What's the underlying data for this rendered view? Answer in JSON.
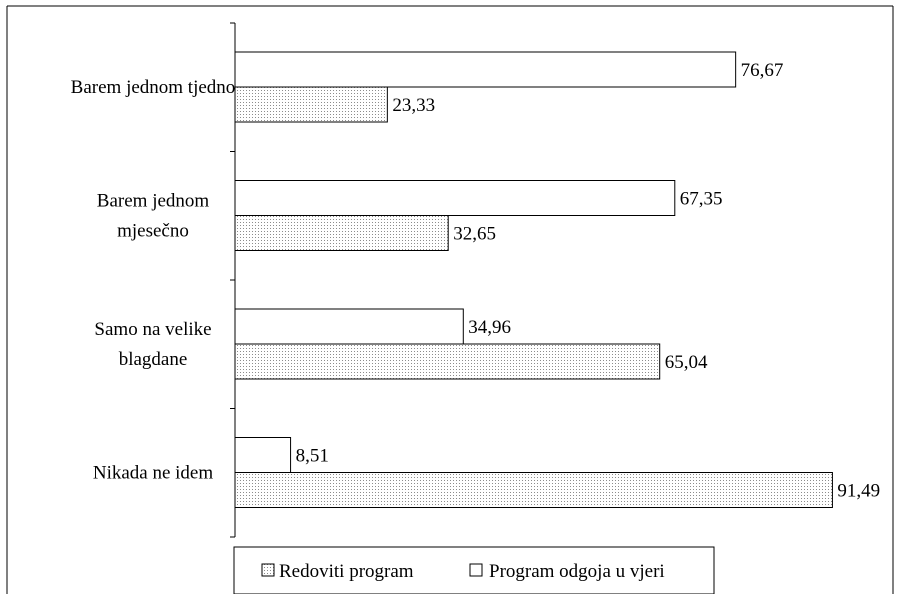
{
  "chart_data": {
    "type": "bar",
    "orientation": "horizontal",
    "categories": [
      [
        "Barem jednom tjedno"
      ],
      [
        "Barem jednom",
        "mjesečno"
      ],
      [
        "Samo na velike",
        "blagdane"
      ],
      [
        "Nikada ne idem"
      ]
    ],
    "series": [
      {
        "name": "Program odgoja u vjeri",
        "values": [
          76.67,
          67.35,
          34.96,
          8.51
        ],
        "labels": [
          "76,67",
          "67,35",
          "34,96",
          "8,51"
        ],
        "fill": "white"
      },
      {
        "name": "Redoviti program",
        "values": [
          23.33,
          32.65,
          65.04,
          91.49
        ],
        "labels": [
          "23,33",
          "32,65",
          "65,04",
          "91,49"
        ],
        "fill": "dotted"
      }
    ],
    "legend": {
      "placement": "bottom-center",
      "entries": [
        "Redoviti program",
        "Program odgoja u vjeri"
      ]
    },
    "xlim": [
      0,
      100
    ],
    "grid": false,
    "colors": {
      "bar_border": "#000000",
      "dot_pattern": "#8c8c8c",
      "background": "#ffffff"
    }
  }
}
